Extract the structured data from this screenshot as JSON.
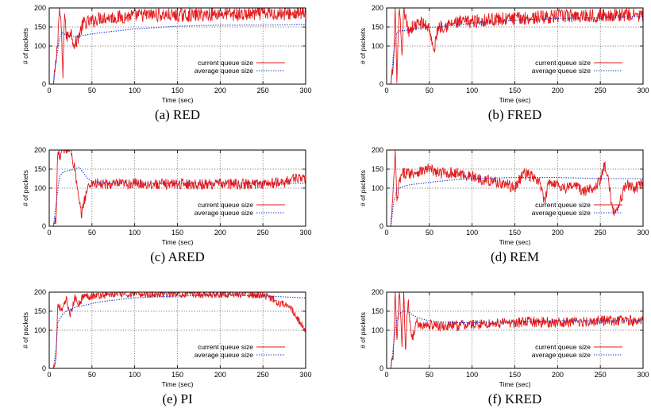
{
  "figure": {
    "chart_data": [
      {
        "type": "line",
        "caption": "(a) RED",
        "xlabel": "Time (sec)",
        "ylabel": "# of packets",
        "xlim": [
          0,
          300
        ],
        "ylim": [
          0,
          200
        ],
        "x_ticks": [
          0,
          50,
          100,
          150,
          200,
          250,
          300
        ],
        "y_ticks": [
          0,
          100,
          150,
          200
        ],
        "grid": true,
        "legend": "bottom-right",
        "series": [
          {
            "name": "current queue size",
            "color": "#e41a1c",
            "style": "solid",
            "x": [
              0,
              5,
              8,
              10,
              12,
              14,
              16,
              18,
              20,
              25,
              30,
              35,
              40,
              50,
              60,
              80,
              100,
              125,
              150,
              175,
              200,
              225,
              250,
              275,
              300
            ],
            "y": [
              0,
              0,
              60,
              120,
              200,
              150,
              20,
              200,
              120,
              140,
              100,
              130,
              160,
              165,
              175,
              175,
              180,
              182,
              180,
              182,
              185,
              182,
              185,
              185,
              185
            ],
            "noise": 18
          },
          {
            "name": "average queue size",
            "color": "#1a3bd1",
            "style": "dotted",
            "x": [
              5,
              8,
              12,
              15,
              20,
              30,
              40,
              60,
              80,
              100,
              150,
              200,
              250,
              300
            ],
            "y": [
              0,
              60,
              120,
              135,
              128,
              125,
              128,
              135,
              140,
              145,
              152,
              155,
              155,
              157
            ],
            "noise": 0
          }
        ]
      },
      {
        "type": "line",
        "caption": "(b) FRED",
        "xlabel": "Time (sec)",
        "ylabel": "# of packets",
        "xlim": [
          0,
          300
        ],
        "ylim": [
          0,
          200
        ],
        "x_ticks": [
          0,
          50,
          100,
          150,
          200,
          250,
          300
        ],
        "y_ticks": [
          0,
          100,
          150,
          200
        ],
        "grid": true,
        "legend": "bottom-right",
        "series": [
          {
            "name": "current queue size",
            "color": "#e41a1c",
            "style": "solid",
            "x": [
              0,
              5,
              8,
              10,
              12,
              15,
              18,
              20,
              25,
              30,
              40,
              50,
              55,
              60,
              70,
              80,
              100,
              125,
              150,
              175,
              200,
              225,
              250,
              275,
              300
            ],
            "y": [
              0,
              0,
              50,
              200,
              20,
              200,
              60,
              200,
              140,
              150,
              160,
              150,
              80,
              150,
              155,
              160,
              165,
              170,
              172,
              175,
              178,
              180,
              180,
              182,
              180
            ],
            "noise": 18
          },
          {
            "name": "average queue size",
            "color": "#1a3bd1",
            "style": "dotted",
            "x": [
              5,
              8,
              12,
              15,
              20,
              30,
              40,
              60,
              80,
              100,
              150,
              200,
              250,
              300
            ],
            "y": [
              0,
              80,
              135,
              140,
              140,
              145,
              148,
              150,
              155,
              160,
              168,
              172,
              175,
              178
            ],
            "noise": 0
          }
        ]
      },
      {
        "type": "line",
        "caption": "(c) ARED",
        "xlabel": "Time (sec)",
        "ylabel": "# of packets",
        "xlim": [
          0,
          300
        ],
        "ylim": [
          0,
          200
        ],
        "x_ticks": [
          0,
          50,
          100,
          150,
          200,
          250,
          300
        ],
        "y_ticks": [
          0,
          100,
          150,
          200
        ],
        "grid": true,
        "legend": "bottom-right",
        "series": [
          {
            "name": "current queue size",
            "color": "#e41a1c",
            "style": "solid",
            "x": [
              0,
              5,
              8,
              10,
              12,
              15,
              20,
              25,
              30,
              35,
              38,
              40,
              45,
              50,
              60,
              80,
              100,
              125,
              150,
              175,
              200,
              225,
              250,
              275,
              290,
              300
            ],
            "y": [
              0,
              0,
              20,
              200,
              180,
              200,
              200,
              200,
              150,
              60,
              30,
              60,
              100,
              115,
              110,
              110,
              112,
              110,
              112,
              110,
              112,
              110,
              112,
              115,
              130,
              120
            ],
            "noise": 14
          },
          {
            "name": "average queue size",
            "color": "#1a3bd1",
            "style": "dotted",
            "x": [
              5,
              8,
              12,
              15,
              20,
              30,
              35,
              40,
              45,
              50,
              60,
              80,
              100,
              150,
              200,
              250,
              300
            ],
            "y": [
              0,
              60,
              130,
              140,
              145,
              150,
              155,
              140,
              125,
              118,
              115,
              113,
              113,
              113,
              113,
              113,
              113
            ],
            "noise": 0
          }
        ]
      },
      {
        "type": "line",
        "caption": "(d) REM",
        "xlabel": "Time (sec)",
        "ylabel": "# of packets",
        "xlim": [
          0,
          300
        ],
        "ylim": [
          0,
          200
        ],
        "x_ticks": [
          0,
          50,
          100,
          150,
          200,
          250,
          300
        ],
        "y_ticks": [
          0,
          100,
          150,
          200
        ],
        "grid": true,
        "legend": "bottom-right",
        "series": [
          {
            "name": "current queue size",
            "color": "#e41a1c",
            "style": "solid",
            "x": [
              0,
              5,
              8,
              10,
              12,
              15,
              20,
              30,
              40,
              50,
              60,
              80,
              100,
              120,
              140,
              150,
              160,
              170,
              180,
              185,
              190,
              200,
              210,
              220,
              230,
              240,
              250,
              255,
              260,
              265,
              270,
              280,
              290,
              300
            ],
            "y": [
              0,
              0,
              100,
              200,
              60,
              120,
              140,
              140,
              145,
              150,
              140,
              140,
              130,
              120,
              110,
              100,
              140,
              130,
              110,
              60,
              120,
              110,
              100,
              110,
              90,
              100,
              120,
              160,
              110,
              40,
              45,
              110,
              100,
              110
            ],
            "noise": 15
          },
          {
            "name": "average queue size",
            "color": "#1a3bd1",
            "style": "dotted",
            "x": [
              5,
              8,
              12,
              15,
              20,
              30,
              40,
              50,
              60,
              80,
              100,
              150,
              200,
              250,
              300
            ],
            "y": [
              0,
              60,
              95,
              100,
              105,
              110,
              112,
              115,
              118,
              122,
              125,
              128,
              128,
              125,
              125
            ],
            "noise": 0
          }
        ]
      },
      {
        "type": "line",
        "caption": "(e) PI",
        "xlabel": "Time (sec)",
        "ylabel": "# of packets",
        "xlim": [
          0,
          300
        ],
        "ylim": [
          0,
          200
        ],
        "x_ticks": [
          0,
          50,
          100,
          150,
          200,
          250,
          300
        ],
        "y_ticks": [
          0,
          100,
          150,
          200
        ],
        "grid": true,
        "legend": "bottom-right",
        "series": [
          {
            "name": "current queue size",
            "color": "#e41a1c",
            "style": "solid",
            "x": [
              0,
              5,
              8,
              10,
              15,
              20,
              25,
              30,
              35,
              40,
              50,
              60,
              80,
              100,
              125,
              150,
              175,
              200,
              225,
              250,
              260,
              270,
              280,
              290,
              300
            ],
            "y": [
              0,
              0,
              30,
              170,
              150,
              180,
              140,
              185,
              170,
              190,
              190,
              192,
              195,
              195,
              195,
              195,
              195,
              195,
              195,
              192,
              185,
              170,
              170,
              130,
              100
            ],
            "noise": 10
          },
          {
            "name": "average queue size",
            "color": "#1a3bd1",
            "style": "dotted",
            "x": [
              5,
              8,
              10,
              15,
              20,
              30,
              40,
              50,
              60,
              80,
              100,
              150,
              200,
              250,
              300
            ],
            "y": [
              0,
              50,
              120,
              140,
              150,
              160,
              165,
              170,
              175,
              180,
              185,
              190,
              192,
              190,
              185
            ],
            "noise": 0
          }
        ]
      },
      {
        "type": "line",
        "caption": "(f) KRED",
        "xlabel": "Time (sec)",
        "ylabel": "# of packets",
        "xlim": [
          0,
          300
        ],
        "ylim": [
          0,
          200
        ],
        "x_ticks": [
          0,
          50,
          100,
          150,
          200,
          250,
          300
        ],
        "y_ticks": [
          0,
          100,
          150,
          200
        ],
        "grid": true,
        "legend": "bottom-right",
        "series": [
          {
            "name": "current queue size",
            "color": "#e41a1c",
            "style": "solid",
            "x": [
              0,
              5,
              8,
              10,
              12,
              15,
              18,
              20,
              22,
              25,
              28,
              30,
              35,
              40,
              50,
              60,
              80,
              100,
              125,
              150,
              175,
              200,
              225,
              250,
              275,
              300
            ],
            "y": [
              0,
              0,
              40,
              200,
              80,
              200,
              60,
              200,
              40,
              180,
              100,
              80,
              120,
              110,
              115,
              110,
              112,
              115,
              118,
              120,
              122,
              120,
              122,
              125,
              125,
              125
            ],
            "noise": 14
          },
          {
            "name": "average queue size",
            "color": "#1a3bd1",
            "style": "dotted",
            "x": [
              5,
              8,
              12,
              15,
              20,
              25,
              30,
              40,
              50,
              60,
              80,
              100,
              150,
              200,
              250,
              300
            ],
            "y": [
              0,
              60,
              130,
              145,
              150,
              150,
              140,
              130,
              125,
              122,
              120,
              120,
              122,
              125,
              125,
              125
            ],
            "noise": 0
          }
        ]
      }
    ]
  }
}
